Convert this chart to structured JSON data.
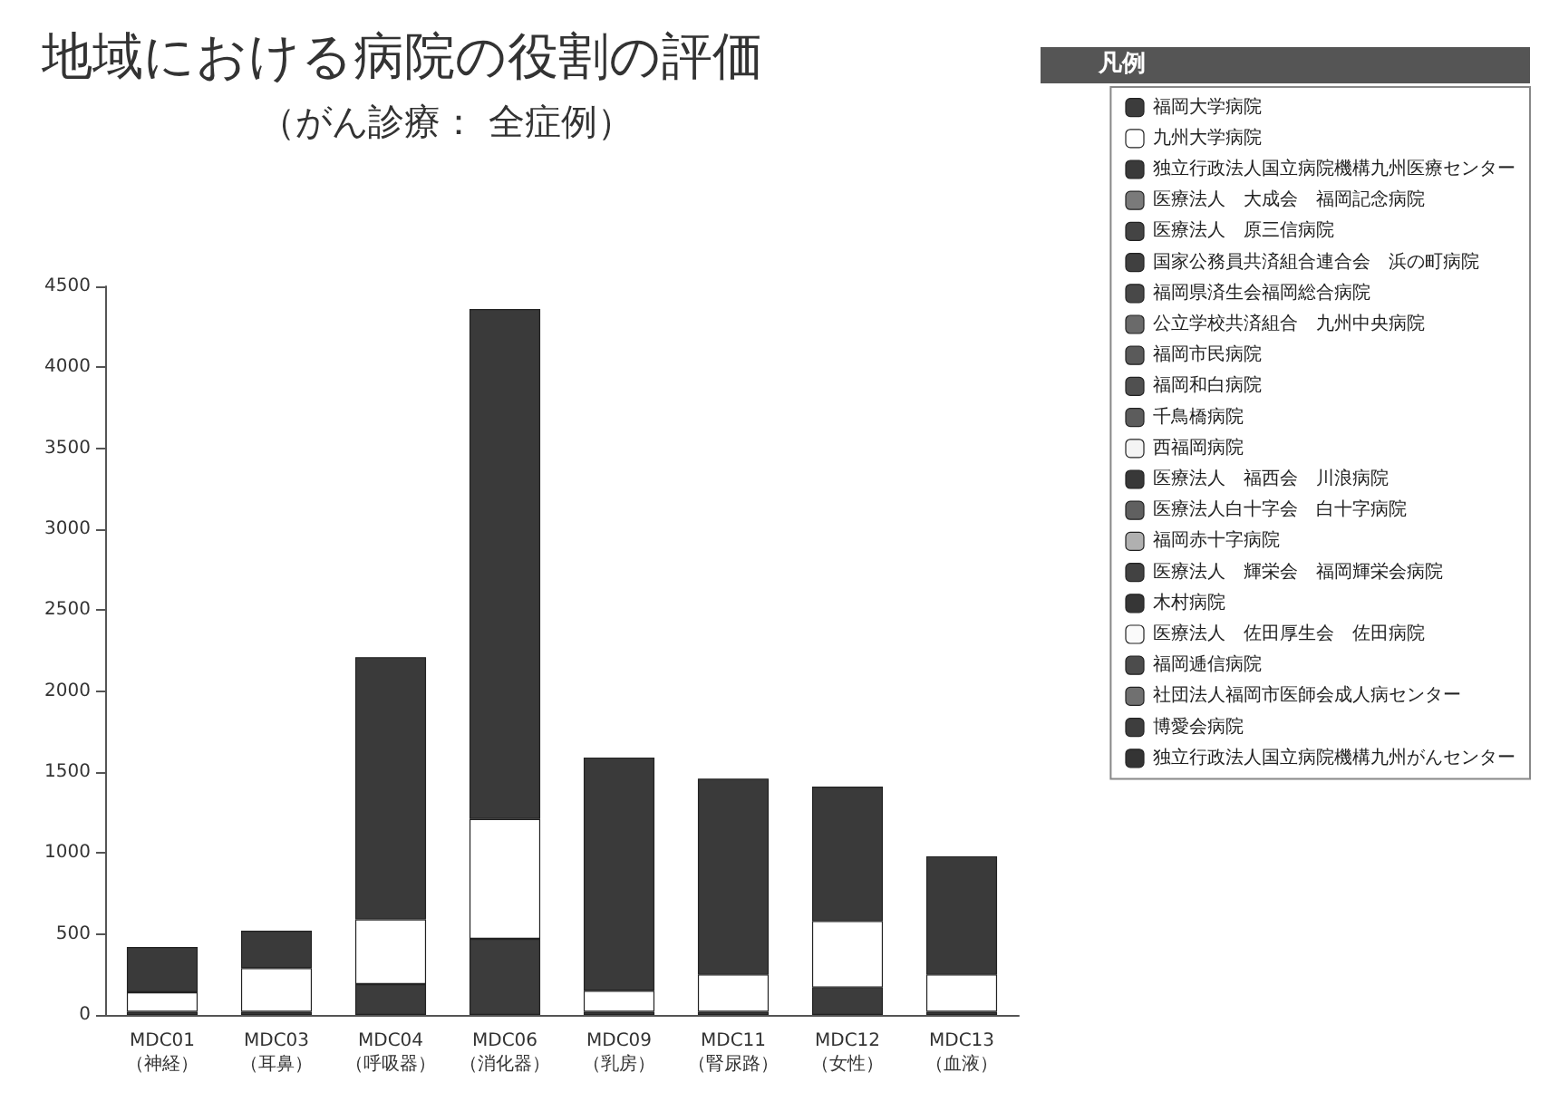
{
  "chart_data": {
    "type": "bar",
    "title": "地域における病院の役割の評価",
    "subtitle": "（がん診療： 全症例）",
    "legend_title": "凡例",
    "categories": [
      "MDC01\n（神経）",
      "MDC03\n（耳鼻）",
      "MDC04\n（呼吸器）",
      "MDC06\n（消化器）",
      "MDC09\n（乳房）",
      "MDC11\n（腎尿路）",
      "MDC12\n（女性）",
      "MDC13\n（血液）"
    ],
    "stacked": true,
    "ylim": [
      0,
      4500
    ],
    "yticks": [
      0,
      500,
      1000,
      1500,
      2000,
      2500,
      3000,
      3500,
      4000,
      4500
    ],
    "grid": false,
    "legend": "top right",
    "series": [
      {
        "name": "福岡大学病院",
        "color": "#3c3c3c",
        "values": [
          20,
          20,
          190,
          470,
          20,
          20,
          170,
          20
        ]
      },
      {
        "name": "九州大学病院",
        "color": "#ffffff",
        "values": [
          120,
          270,
          400,
          740,
          130,
          230,
          410,
          230
        ]
      },
      {
        "name": "独立行政法人国立病院機構九州医療センター",
        "color": "#3a3a3a",
        "values": [
          280,
          230,
          1620,
          3150,
          1440,
          1210,
          830,
          730
        ]
      },
      {
        "name": "医療法人　大成会　福岡記念病院",
        "color": "#7a7a7a",
        "values": [
          null,
          null,
          null,
          null,
          null,
          null,
          null,
          null
        ]
      },
      {
        "name": "医療法人　原三信病院",
        "color": "#444444",
        "values": [
          null,
          null,
          null,
          null,
          null,
          null,
          null,
          null
        ]
      },
      {
        "name": "国家公務員共済組合連合会　浜の町病院",
        "color": "#404040",
        "values": [
          null,
          null,
          null,
          null,
          null,
          null,
          null,
          null
        ]
      },
      {
        "name": "福岡県済生会福岡総合病院",
        "color": "#484848",
        "values": [
          null,
          null,
          null,
          null,
          null,
          null,
          null,
          null
        ]
      },
      {
        "name": "公立学校共済組合　九州中央病院",
        "color": "#6a6a6a",
        "values": [
          null,
          null,
          null,
          null,
          null,
          null,
          null,
          null
        ]
      },
      {
        "name": "福岡市民病院",
        "color": "#5a5a5a",
        "values": [
          null,
          null,
          null,
          null,
          null,
          null,
          null,
          null
        ]
      },
      {
        "name": "福岡和白病院",
        "color": "#505050",
        "values": [
          null,
          null,
          null,
          null,
          null,
          null,
          null,
          null
        ]
      },
      {
        "name": "千鳥橋病院",
        "color": "#5c5c5c",
        "values": [
          null,
          null,
          null,
          null,
          null,
          null,
          null,
          null
        ]
      },
      {
        "name": "西福岡病院",
        "color": "#f4f4f4",
        "values": [
          null,
          null,
          null,
          null,
          null,
          null,
          null,
          null
        ]
      },
      {
        "name": "医療法人　福西会　川浪病院",
        "color": "#383838",
        "values": [
          null,
          null,
          null,
          null,
          null,
          null,
          null,
          null
        ]
      },
      {
        "name": "医療法人白十字会　白十字病院",
        "color": "#606060",
        "values": [
          null,
          null,
          null,
          null,
          null,
          null,
          null,
          null
        ]
      },
      {
        "name": "福岡赤十字病院",
        "color": "#b0b0b0",
        "values": [
          null,
          null,
          null,
          null,
          null,
          null,
          null,
          null
        ]
      },
      {
        "name": "医療法人　輝栄会　福岡輝栄会病院",
        "color": "#424242",
        "values": [
          null,
          null,
          null,
          null,
          null,
          null,
          null,
          null
        ]
      },
      {
        "name": "木村病院",
        "color": "#363636",
        "values": [
          null,
          null,
          null,
          null,
          null,
          null,
          null,
          null
        ]
      },
      {
        "name": "医療法人　佐田厚生会　佐田病院",
        "color": "#fafafa",
        "values": [
          null,
          null,
          null,
          null,
          null,
          null,
          null,
          null
        ]
      },
      {
        "name": "福岡逓信病院",
        "color": "#4c4c4c",
        "values": [
          null,
          null,
          null,
          null,
          null,
          null,
          null,
          null
        ]
      },
      {
        "name": "社団法人福岡市医師会成人病センター",
        "color": "#707070",
        "values": [
          null,
          null,
          null,
          null,
          null,
          null,
          null,
          null
        ]
      },
      {
        "name": "博愛会病院",
        "color": "#3e3e3e",
        "values": [
          null,
          null,
          null,
          null,
          null,
          null,
          null,
          null
        ]
      },
      {
        "name": "独立行政法人国立病院機構九州がんセンター",
        "color": "#343434",
        "values": [
          null,
          null,
          null,
          null,
          null,
          null,
          null,
          null
        ]
      }
    ]
  }
}
